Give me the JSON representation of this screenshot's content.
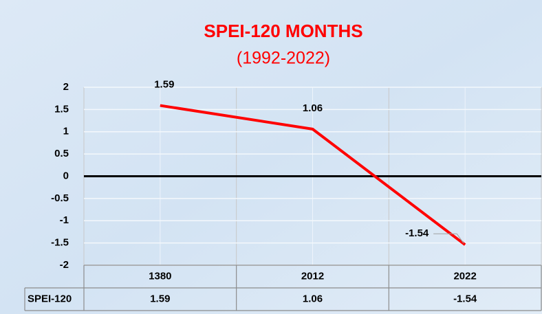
{
  "chart_data": {
    "type": "line",
    "title": "SPEI-120 MONTHS",
    "subtitle": "(1992-2022)",
    "categories": [
      "1380",
      "2012",
      "2022"
    ],
    "series": [
      {
        "name": "SPEI-120",
        "color": "#ff0000",
        "values": [
          1.59,
          1.06,
          -1.54
        ]
      }
    ],
    "ylim": [
      -2,
      2
    ],
    "yticks": [
      -2,
      -1.5,
      -1,
      -0.5,
      0,
      0.5,
      1,
      1.5,
      2
    ],
    "grid": true
  }
}
